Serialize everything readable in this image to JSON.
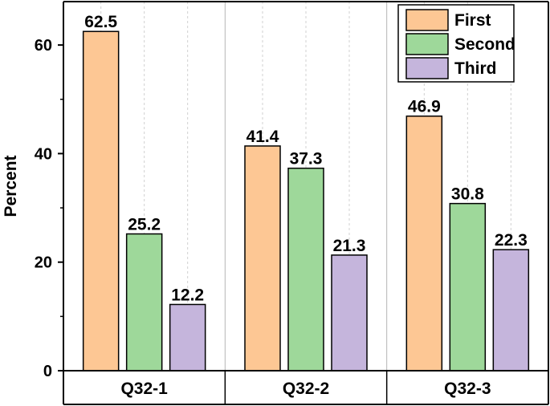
{
  "chart_data": {
    "type": "bar",
    "title": "",
    "xlabel": "",
    "ylabel": "Percent",
    "ylim": [
      0,
      68
    ],
    "yticks": [
      0,
      20,
      40,
      60
    ],
    "categories": [
      "Q32-1",
      "Q32-2",
      "Q32-3"
    ],
    "series": [
      {
        "name": "First",
        "values": [
          62.5,
          41.4,
          46.9
        ],
        "color": "#FDC794"
      },
      {
        "name": "Second",
        "values": [
          25.2,
          37.3,
          30.8
        ],
        "color": "#9ED89A"
      },
      {
        "name": "Third",
        "values": [
          12.2,
          21.3,
          22.3
        ],
        "color": "#C5B5DC"
      }
    ],
    "legend_position": "top-right",
    "grid": "vertical dashed"
  }
}
